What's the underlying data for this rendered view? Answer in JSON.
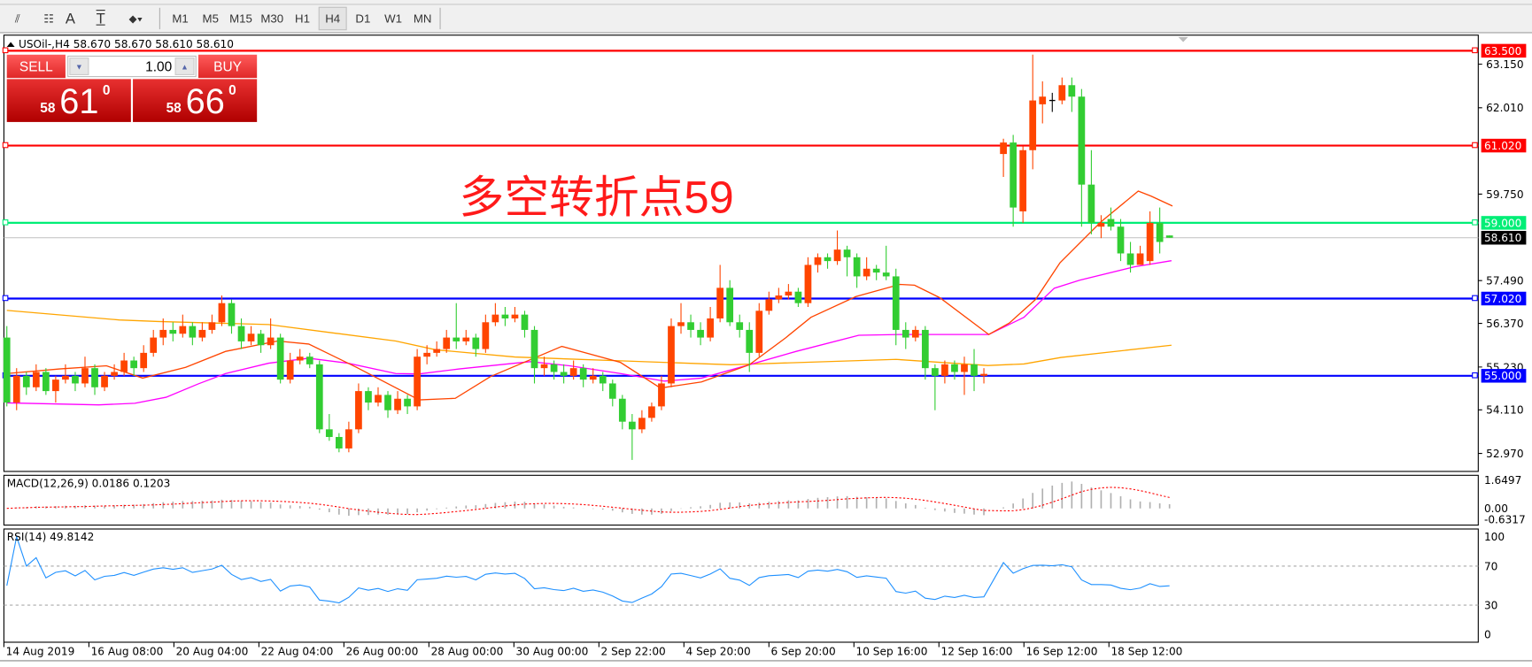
{
  "toolbar": {
    "tools": [
      {
        "name": "equidistant-channel-icon",
        "glyph": "⫽"
      },
      {
        "name": "fibonacci-icon",
        "glyph": "☷"
      },
      {
        "name": "text-tool-icon",
        "glyph": "A"
      },
      {
        "name": "text-label-icon",
        "glyph": "T"
      },
      {
        "name": "arrows-icon",
        "glyph": "⬥▾"
      }
    ],
    "timeframes": [
      "M1",
      "M5",
      "M15",
      "M30",
      "H1",
      "H4",
      "D1",
      "W1",
      "MN"
    ],
    "active_timeframe": "H4"
  },
  "chart": {
    "title": "USOil-,H4  58.670 58.670 58.610 58.610",
    "annotation": "多空转折点59",
    "trade_panel": {
      "sell_label": "SELL",
      "buy_label": "BUY",
      "lot": "1.00",
      "sell_prefix": "58",
      "sell_big": "61",
      "sell_sup": "0",
      "buy_prefix": "58",
      "buy_big": "66",
      "buy_sup": "0"
    }
  },
  "chart_data": {
    "type": "candlestick",
    "symbol": "USOil-",
    "timeframe": "H4",
    "ylim": [
      52.5,
      63.8
    ],
    "price_ticks": [
      "63.150",
      "62.010",
      "59.750",
      "57.490",
      "56.370",
      "55.230",
      "54.110",
      "52.970"
    ],
    "hlines": [
      {
        "value": 63.5,
        "label": "63.500",
        "color": "#ff0000"
      },
      {
        "value": 61.02,
        "label": "61.020",
        "color": "#ff0000"
      },
      {
        "value": 59.0,
        "label": "59.000",
        "color": "#00ee76"
      },
      {
        "value": 57.02,
        "label": "57.020",
        "color": "#0000ff"
      },
      {
        "value": 55.0,
        "label": "55.000",
        "color": "#0000ff"
      }
    ],
    "current_price": {
      "value": 58.61,
      "label": "58.610",
      "color": "#000000"
    },
    "colors": {
      "up": "#ff4500",
      "down": "#32cd32",
      "doji": "#000000",
      "ma_fast": "#ff4500",
      "ma_mid": "#ff00ff",
      "ma_slow": "#ffa500"
    },
    "time_labels": [
      "14 Aug 2019",
      "16 Aug 08:00",
      "20 Aug 04:00",
      "22 Aug 04:00",
      "26 Aug 00:00",
      "28 Aug 00:00",
      "30 Aug 00:00",
      "2 Sep 22:00",
      "4 Sep 20:00",
      "6 Sep 20:00",
      "10 Sep 16:00",
      "12 Sep 16:00",
      "16 Sep 12:00",
      "18 Sep 12:00"
    ],
    "ohlc": [
      [
        56.0,
        56.3,
        54.2,
        54.3
      ],
      [
        54.3,
        55.2,
        54.1,
        55.0
      ],
      [
        55.0,
        55.1,
        54.5,
        54.7
      ],
      [
        54.7,
        55.3,
        54.6,
        55.1
      ],
      [
        55.1,
        55.2,
        54.5,
        54.6
      ],
      [
        54.6,
        55.0,
        54.3,
        54.9
      ],
      [
        54.9,
        55.3,
        54.8,
        55.0
      ],
      [
        55.0,
        55.1,
        54.6,
        54.8
      ],
      [
        54.8,
        55.5,
        54.7,
        55.2
      ],
      [
        55.2,
        55.3,
        54.5,
        54.7
      ],
      [
        54.7,
        55.1,
        54.6,
        55.0
      ],
      [
        55.0,
        55.3,
        54.9,
        55.1
      ],
      [
        55.1,
        55.6,
        55.0,
        55.4
      ],
      [
        55.4,
        55.5,
        55.0,
        55.2
      ],
      [
        55.2,
        55.8,
        55.1,
        55.6
      ],
      [
        55.6,
        56.2,
        55.5,
        56.0
      ],
      [
        56.0,
        56.5,
        55.8,
        56.2
      ],
      [
        56.2,
        56.4,
        55.9,
        56.1
      ],
      [
        56.1,
        56.6,
        56.0,
        56.3
      ],
      [
        56.3,
        56.4,
        55.8,
        56.0
      ],
      [
        56.0,
        56.4,
        55.9,
        56.2
      ],
      [
        56.2,
        56.6,
        56.1,
        56.4
      ],
      [
        56.4,
        57.1,
        56.3,
        56.9
      ],
      [
        56.9,
        57.0,
        56.1,
        56.3
      ],
      [
        56.3,
        56.5,
        55.7,
        55.9
      ],
      [
        55.9,
        56.3,
        55.8,
        56.1
      ],
      [
        56.1,
        56.2,
        55.6,
        55.8
      ],
      [
        55.8,
        56.5,
        55.7,
        56.0
      ],
      [
        56.0,
        56.1,
        54.8,
        54.9
      ],
      [
        54.9,
        55.6,
        54.8,
        55.4
      ],
      [
        55.4,
        55.7,
        55.3,
        55.5
      ],
      [
        55.5,
        55.6,
        55.2,
        55.3
      ],
      [
        55.3,
        55.4,
        53.5,
        53.6
      ],
      [
        53.6,
        54.0,
        53.3,
        53.4
      ],
      [
        53.4,
        53.5,
        53.0,
        53.1
      ],
      [
        53.1,
        53.8,
        53.0,
        53.6
      ],
      [
        53.6,
        54.8,
        53.5,
        54.6
      ],
      [
        54.6,
        54.7,
        54.1,
        54.3
      ],
      [
        54.3,
        54.7,
        54.2,
        54.5
      ],
      [
        54.5,
        54.6,
        53.9,
        54.1
      ],
      [
        54.1,
        54.6,
        54.0,
        54.4
      ],
      [
        54.4,
        54.5,
        54.0,
        54.2
      ],
      [
        54.2,
        55.7,
        54.1,
        55.5
      ],
      [
        55.5,
        55.8,
        55.3,
        55.6
      ],
      [
        55.6,
        55.9,
        55.5,
        55.7
      ],
      [
        55.7,
        56.2,
        55.6,
        56.0
      ],
      [
        56.0,
        56.9,
        55.7,
        55.9
      ],
      [
        55.9,
        56.2,
        55.8,
        56.0
      ],
      [
        56.0,
        56.1,
        55.5,
        55.7
      ],
      [
        55.7,
        56.6,
        55.6,
        56.4
      ],
      [
        56.4,
        56.9,
        56.3,
        56.6
      ],
      [
        56.6,
        56.8,
        56.3,
        56.5
      ],
      [
        56.5,
        56.8,
        56.4,
        56.6
      ],
      [
        56.6,
        56.7,
        56.0,
        56.2
      ],
      [
        56.2,
        56.3,
        54.8,
        55.2
      ],
      [
        55.2,
        55.5,
        55.0,
        55.3
      ],
      [
        55.3,
        55.4,
        54.9,
        55.1
      ],
      [
        55.1,
        55.3,
        54.8,
        55.0
      ],
      [
        55.0,
        55.4,
        54.9,
        55.2
      ],
      [
        55.2,
        55.3,
        54.7,
        54.9
      ],
      [
        54.9,
        55.2,
        54.8,
        55.0
      ],
      [
        55.0,
        55.1,
        54.6,
        54.8
      ],
      [
        54.8,
        54.9,
        54.2,
        54.4
      ],
      [
        54.4,
        54.5,
        53.6,
        53.8
      ],
      [
        53.8,
        54.0,
        52.8,
        53.6
      ],
      [
        53.6,
        54.1,
        53.5,
        53.9
      ],
      [
        53.9,
        54.3,
        53.8,
        54.2
      ],
      [
        54.2,
        55.0,
        54.1,
        54.8
      ],
      [
        54.8,
        56.5,
        54.7,
        56.3
      ],
      [
        56.3,
        56.9,
        56.1,
        56.4
      ],
      [
        56.4,
        56.6,
        56.0,
        56.2
      ],
      [
        56.2,
        56.4,
        55.8,
        56.0
      ],
      [
        56.0,
        56.8,
        55.9,
        56.5
      ],
      [
        56.5,
        57.9,
        56.4,
        57.3
      ],
      [
        57.3,
        57.5,
        56.3,
        56.4
      ],
      [
        56.4,
        56.6,
        56.0,
        56.2
      ],
      [
        56.2,
        56.4,
        55.1,
        55.6
      ],
      [
        55.6,
        56.9,
        55.5,
        56.7
      ],
      [
        56.7,
        57.2,
        56.6,
        57.0
      ],
      [
        57.0,
        57.3,
        56.9,
        57.1
      ],
      [
        57.1,
        57.4,
        57.0,
        57.2
      ],
      [
        57.2,
        57.3,
        56.8,
        56.9
      ],
      [
        56.9,
        58.1,
        56.8,
        57.9
      ],
      [
        57.9,
        58.2,
        57.7,
        58.1
      ],
      [
        58.1,
        58.2,
        57.8,
        58.0
      ],
      [
        58.0,
        58.8,
        57.9,
        58.3
      ],
      [
        58.3,
        58.4,
        57.6,
        58.1
      ],
      [
        58.1,
        58.2,
        57.3,
        57.6
      ],
      [
        57.6,
        58.1,
        57.5,
        57.8
      ],
      [
        57.8,
        57.9,
        57.5,
        57.7
      ],
      [
        57.7,
        58.4,
        57.5,
        57.6
      ],
      [
        57.6,
        57.8,
        55.8,
        56.2
      ],
      [
        56.2,
        56.4,
        55.7,
        56.0
      ],
      [
        56.0,
        56.3,
        55.9,
        56.2
      ],
      [
        56.2,
        56.3,
        54.9,
        55.2
      ],
      [
        55.2,
        55.3,
        54.1,
        55.0
      ],
      [
        55.0,
        55.4,
        54.8,
        55.3
      ],
      [
        55.3,
        55.4,
        54.9,
        55.1
      ],
      [
        55.1,
        55.5,
        54.5,
        55.3
      ],
      [
        55.3,
        55.7,
        54.6,
        55.0
      ],
      [
        55.0,
        55.2,
        54.8,
        55.05
      ],
      null,
      [
        60.8,
        61.2,
        60.2,
        61.1
      ],
      [
        61.1,
        61.3,
        58.9,
        59.4
      ],
      [
        59.3,
        61.0,
        59.0,
        60.9
      ],
      [
        60.9,
        63.4,
        60.4,
        62.2
      ],
      [
        62.1,
        62.7,
        61.6,
        62.3
      ],
      [
        62.2,
        62.4,
        61.9,
        62.2
      ],
      [
        62.2,
        62.8,
        62.1,
        62.6
      ],
      [
        62.6,
        62.8,
        61.9,
        62.3
      ],
      [
        62.3,
        62.5,
        58.9,
        60.0
      ],
      [
        60.0,
        60.9,
        58.7,
        59.0
      ],
      [
        58.9,
        59.2,
        58.6,
        59.0
      ],
      [
        59.1,
        59.4,
        58.8,
        58.9
      ],
      [
        58.9,
        59.1,
        58.0,
        58.2
      ],
      [
        58.2,
        58.5,
        57.7,
        57.9
      ],
      [
        57.9,
        58.4,
        57.9,
        58.2
      ],
      [
        58.0,
        59.3,
        57.9,
        59.0
      ],
      [
        59.0,
        59.4,
        58.2,
        58.5
      ],
      [
        58.67,
        58.67,
        58.61,
        58.61
      ]
    ],
    "moving_averages": {
      "fast": [
        [
          0,
          55.06
        ],
        [
          5.4,
          55.18
        ],
        [
          10.2,
          55.26
        ],
        [
          13.9,
          54.94
        ],
        [
          18.3,
          55.22
        ],
        [
          22.4,
          55.64
        ],
        [
          27.7,
          55.91
        ],
        [
          30.9,
          55.83
        ],
        [
          35.8,
          55.22
        ],
        [
          42.2,
          54.37
        ],
        [
          45.9,
          54.41
        ],
        [
          49.5,
          54.98
        ],
        [
          56.8,
          55.77
        ],
        [
          62.8,
          55.35
        ],
        [
          66.9,
          54.68
        ],
        [
          71.1,
          54.84
        ],
        [
          76,
          55.29
        ],
        [
          79.7,
          55.99
        ],
        [
          82.3,
          56.53
        ],
        [
          86.9,
          57.07
        ],
        [
          91.4,
          57.39
        ],
        [
          92.9,
          57.37
        ],
        [
          95.5,
          57.04
        ],
        [
          100.5,
          56.08
        ],
        [
          102.6,
          56.38
        ],
        [
          105.3,
          57.0
        ],
        [
          107.8,
          57.96
        ],
        [
          112,
          59.03
        ],
        [
          115.8,
          59.83
        ],
        [
          117.1,
          59.7
        ],
        [
          119.3,
          59.44
        ]
      ],
      "mid": [
        [
          0,
          54.29
        ],
        [
          9.4,
          54.24
        ],
        [
          13.1,
          54.28
        ],
        [
          16.3,
          54.44
        ],
        [
          19.6,
          54.79
        ],
        [
          22.4,
          55.06
        ],
        [
          26.8,
          55.33
        ],
        [
          30.9,
          55.46
        ],
        [
          34.9,
          55.33
        ],
        [
          39.8,
          55.06
        ],
        [
          42.2,
          55.05
        ],
        [
          46.3,
          55.18
        ],
        [
          52,
          55.33
        ],
        [
          53.6,
          55.37
        ],
        [
          57.6,
          55.26
        ],
        [
          62.8,
          55.06
        ],
        [
          67.3,
          54.86
        ],
        [
          71.1,
          54.94
        ],
        [
          76,
          55.29
        ],
        [
          80.8,
          55.64
        ],
        [
          87.2,
          56.06
        ],
        [
          91.4,
          56.08
        ],
        [
          100.5,
          56.08
        ],
        [
          104.1,
          56.53
        ],
        [
          107.2,
          57.29
        ],
        [
          109.8,
          57.5
        ],
        [
          115.4,
          57.85
        ],
        [
          119.2,
          58.01
        ]
      ],
      "slow": [
        [
          0,
          56.71
        ],
        [
          11.5,
          56.46
        ],
        [
          15.5,
          56.42
        ],
        [
          26.8,
          56.34
        ],
        [
          33.7,
          56.11
        ],
        [
          39.8,
          55.91
        ],
        [
          43.9,
          55.68
        ],
        [
          52,
          55.49
        ],
        [
          62.8,
          55.39
        ],
        [
          74.1,
          55.29
        ],
        [
          91,
          55.43
        ],
        [
          100.4,
          55.27
        ],
        [
          104.1,
          55.31
        ],
        [
          107.9,
          55.48
        ],
        [
          119.2,
          55.8
        ]
      ]
    },
    "macd": {
      "label": "MACD(12,26,9) 0.0186 0.1203",
      "ticks": [
        "1.6497",
        "0.00",
        "-0.6317"
      ],
      "range": [
        -0.6317,
        1.6497
      ]
    },
    "rsi": {
      "label": "RSI(14) 49.8142",
      "ticks": [
        "100",
        "70",
        "30",
        "0"
      ],
      "levels": [
        70,
        30
      ]
    }
  }
}
